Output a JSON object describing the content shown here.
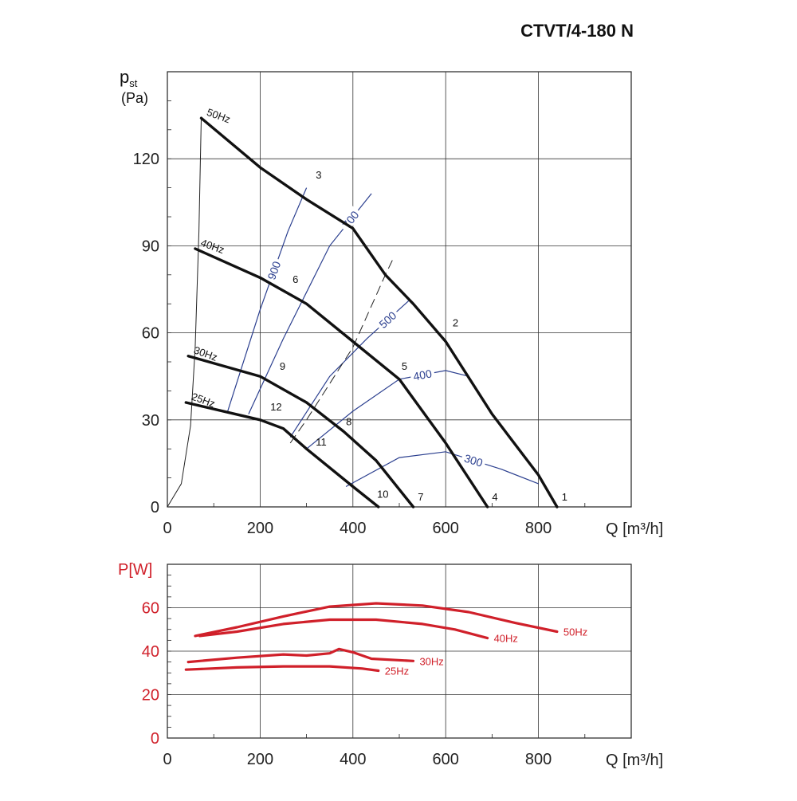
{
  "chart_data": [
    {
      "type": "line",
      "title": "CTVT/4-180 N",
      "ylabel_main": "p",
      "ylabel_sub": "st",
      "ylabel_unit": "(Pa)",
      "xlabel": "Q [m³/h]",
      "xlim": [
        0,
        1000
      ],
      "ylim": [
        0,
        150
      ],
      "xticks": [
        0,
        200,
        400,
        600,
        800
      ],
      "yticks": [
        0,
        30,
        60,
        90,
        120
      ],
      "grid": true,
      "series": [
        {
          "name": "50Hz",
          "points": [
            [
              73,
              134
            ],
            [
              200,
              117
            ],
            [
              300,
              106
            ],
            [
              400,
              96
            ],
            [
              470,
              80
            ],
            [
              530,
              70
            ],
            [
              600,
              57
            ],
            [
              700,
              32
            ],
            [
              800,
              11
            ],
            [
              840,
              0
            ]
          ]
        },
        {
          "name": "40Hz",
          "points": [
            [
              60,
              89
            ],
            [
              200,
              79
            ],
            [
              300,
              70
            ],
            [
              400,
              57
            ],
            [
              500,
              44
            ],
            [
              600,
              22
            ],
            [
              690,
              0
            ]
          ]
        },
        {
          "name": "30Hz",
          "points": [
            [
              45,
              52
            ],
            [
              200,
              45
            ],
            [
              300,
              36
            ],
            [
              380,
              26
            ],
            [
              450,
              16
            ],
            [
              530,
              0
            ]
          ]
        },
        {
          "name": "25Hz",
          "points": [
            [
              40,
              36
            ],
            [
              200,
              30
            ],
            [
              250,
              27
            ],
            [
              300,
              20
            ],
            [
              400,
              7
            ],
            [
              455,
              0
            ]
          ]
        }
      ],
      "system_curve": [
        [
          0,
          0
        ],
        [
          30,
          8
        ],
        [
          50,
          28
        ],
        [
          60,
          55
        ],
        [
          68,
          95
        ],
        [
          73,
          134
        ]
      ],
      "efficiency_line": [
        [
          265,
          22
        ],
        [
          300,
          30
        ],
        [
          400,
          55
        ],
        [
          470,
          80
        ],
        [
          485,
          85
        ]
      ],
      "iso_curves": [
        {
          "label": "900",
          "points": [
            [
              130,
              33
            ],
            [
              200,
              68
            ],
            [
              260,
              95
            ],
            [
              300,
              110
            ]
          ]
        },
        {
          "label": "700",
          "points": [
            [
              175,
              32
            ],
            [
              250,
              58
            ],
            [
              350,
              90
            ],
            [
              440,
              108
            ]
          ]
        },
        {
          "label": "500",
          "points": [
            [
              265,
              24
            ],
            [
              350,
              45
            ],
            [
              430,
              58
            ],
            [
              520,
              71
            ]
          ]
        },
        {
          "label": "400",
          "points": [
            [
              300,
              20
            ],
            [
              400,
              33
            ],
            [
              500,
              44
            ],
            [
              600,
              47
            ],
            [
              650,
              45
            ]
          ]
        },
        {
          "label": "300",
          "points": [
            [
              385,
              7
            ],
            [
              500,
              17
            ],
            [
              600,
              19
            ],
            [
              720,
              13
            ],
            [
              800,
              8
            ]
          ]
        }
      ],
      "point_labels": [
        {
          "label": "1",
          "x": 850,
          "y": 0
        },
        {
          "label": "2",
          "x": 615,
          "y": 60
        },
        {
          "label": "3",
          "x": 320,
          "y": 111
        },
        {
          "label": "4",
          "x": 700,
          "y": 0
        },
        {
          "label": "5",
          "x": 505,
          "y": 45
        },
        {
          "label": "6",
          "x": 270,
          "y": 75
        },
        {
          "label": "7",
          "x": 540,
          "y": 0
        },
        {
          "label": "8",
          "x": 385,
          "y": 26
        },
        {
          "label": "9",
          "x": 242,
          "y": 45
        },
        {
          "label": "10",
          "x": 452,
          "y": 1
        },
        {
          "label": "11",
          "x": 320,
          "y": 19
        },
        {
          "label": "12",
          "x": 222,
          "y": 31
        }
      ]
    },
    {
      "type": "line",
      "ylabel": "P[W]",
      "xlabel": "Q [m³/h]",
      "xlim": [
        0,
        1000
      ],
      "ylim": [
        0,
        80
      ],
      "xticks": [
        0,
        200,
        400,
        600,
        800
      ],
      "yticks": [
        0,
        20,
        40,
        60
      ],
      "grid": true,
      "series": [
        {
          "name": "50Hz",
          "points": [
            [
              60,
              47
            ],
            [
              150,
              51
            ],
            [
              250,
              56
            ],
            [
              350,
              60.5
            ],
            [
              450,
              62
            ],
            [
              550,
              61
            ],
            [
              650,
              58
            ],
            [
              750,
              53
            ],
            [
              840,
              49
            ]
          ]
        },
        {
          "name": "40Hz",
          "points": [
            [
              70,
              47
            ],
            [
              150,
              49
            ],
            [
              250,
              52.5
            ],
            [
              350,
              54.5
            ],
            [
              450,
              54.5
            ],
            [
              550,
              52.5
            ],
            [
              620,
              50
            ],
            [
              690,
              46
            ]
          ]
        },
        {
          "name": "30Hz",
          "points": [
            [
              45,
              35
            ],
            [
              150,
              37
            ],
            [
              250,
              38.5
            ],
            [
              300,
              38
            ],
            [
              350,
              39
            ],
            [
              370,
              41
            ],
            [
              400,
              39.5
            ],
            [
              440,
              36.5
            ],
            [
              530,
              35.5
            ]
          ]
        },
        {
          "name": "25Hz",
          "points": [
            [
              40,
              31.5
            ],
            [
              150,
              32.5
            ],
            [
              250,
              33
            ],
            [
              350,
              33
            ],
            [
              420,
              32
            ],
            [
              455,
              31
            ]
          ]
        }
      ]
    }
  ]
}
